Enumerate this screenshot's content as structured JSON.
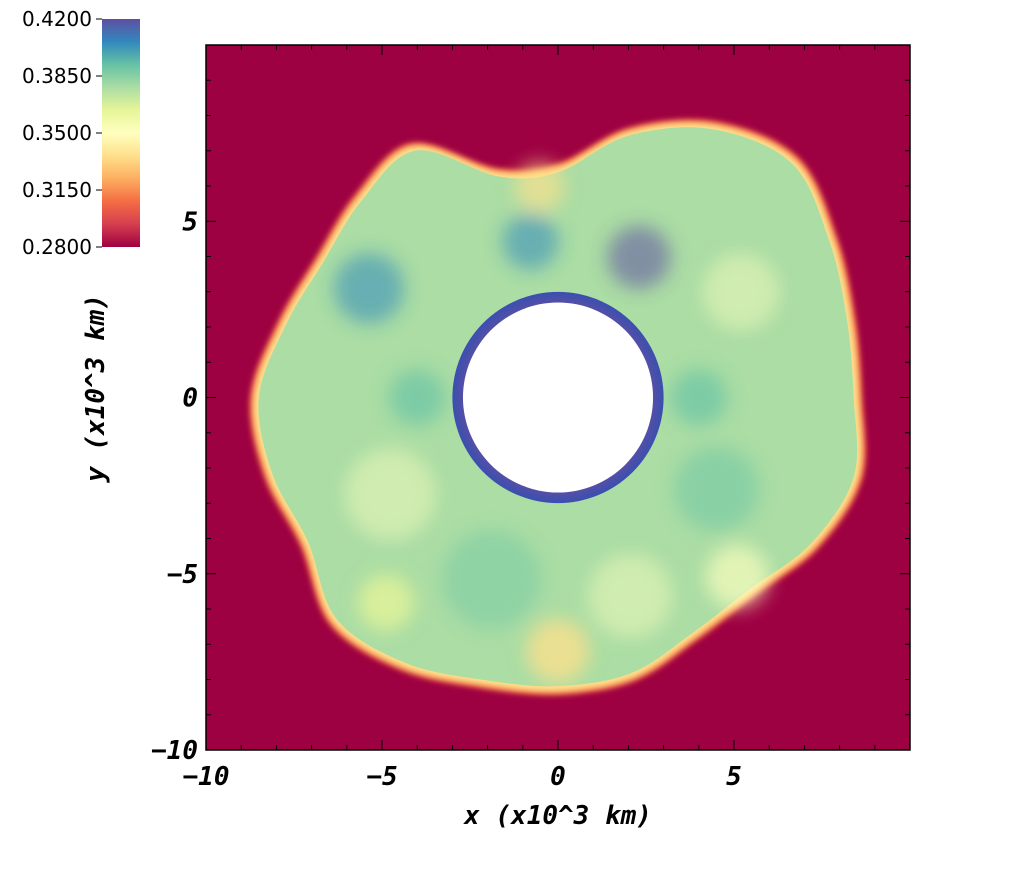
{
  "chart_data": {
    "type": "heatmap",
    "title": "",
    "xlabel": "x (x10^3 km)",
    "ylabel": "y (x10^3 km)",
    "xlim": [
      -10,
      10
    ],
    "ylim": [
      -10,
      10
    ],
    "xticks": [
      -10,
      -5,
      0,
      5
    ],
    "yticks": [
      -10,
      -5,
      0,
      5
    ],
    "xtick_labels": [
      "−10",
      "−5",
      "0",
      "5"
    ],
    "ytick_labels": [
      "−10",
      "−5",
      "0",
      "5"
    ],
    "grid": false,
    "colorbar": {
      "placement": "top-left",
      "min": 0.28,
      "max": 0.42,
      "ticks": [
        0.42,
        0.385,
        0.35,
        0.315,
        0.28
      ],
      "tick_labels": [
        "0.4200",
        "0.3850",
        "0.3500",
        "0.3150",
        "0.2800"
      ],
      "colormap": [
        "#9e0142",
        "#d53e4f",
        "#f46d43",
        "#fdae61",
        "#fee08b",
        "#ffffbf",
        "#e6f598",
        "#abdda4",
        "#66c2a5",
        "#3288bd",
        "#5e4fa2"
      ]
    },
    "background_value": 0.28,
    "inner_hole_radius": 2.7,
    "inner_shell_outer_radius": 3.0,
    "inner_shell_value": 0.42,
    "outer_boundary_radius": [
      {
        "angle_deg": 0,
        "r": 8.5
      },
      {
        "angle_deg": 15,
        "r": 8.6
      },
      {
        "angle_deg": 30,
        "r": 9.0
      },
      {
        "angle_deg": 45,
        "r": 9.5
      },
      {
        "angle_deg": 60,
        "r": 8.9
      },
      {
        "angle_deg": 75,
        "r": 7.8
      },
      {
        "angle_deg": 90,
        "r": 6.5
      },
      {
        "angle_deg": 105,
        "r": 6.6
      },
      {
        "angle_deg": 120,
        "r": 8.2
      },
      {
        "angle_deg": 135,
        "r": 8.0
      },
      {
        "angle_deg": 150,
        "r": 7.8
      },
      {
        "angle_deg": 165,
        "r": 8.1
      },
      {
        "angle_deg": 180,
        "r": 8.6
      },
      {
        "angle_deg": 195,
        "r": 8.5
      },
      {
        "angle_deg": 210,
        "r": 8.3
      },
      {
        "angle_deg": 225,
        "r": 9.0
      },
      {
        "angle_deg": 240,
        "r": 8.8
      },
      {
        "angle_deg": 255,
        "r": 8.4
      },
      {
        "angle_deg": 270,
        "r": 8.3
      },
      {
        "angle_deg": 285,
        "r": 8.2
      },
      {
        "angle_deg": 300,
        "r": 7.8
      },
      {
        "angle_deg": 315,
        "r": 7.8
      },
      {
        "angle_deg": 330,
        "r": 8.4
      },
      {
        "angle_deg": 345,
        "r": 8.8
      }
    ],
    "interior_typical_value": 0.375
  }
}
